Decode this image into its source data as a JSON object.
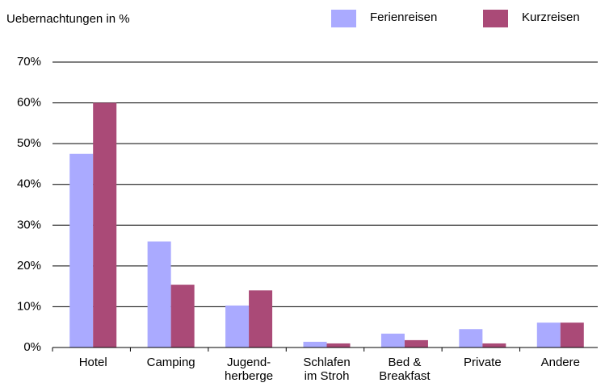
{
  "chart_data": {
    "type": "bar",
    "title": "Uebernachtungen in %",
    "categories": [
      "Hotel",
      "Camping",
      "Jugend-\nherberge",
      "Schlafen\nim Stroh",
      "Bed &\nBreakfast",
      "Private",
      "Andere"
    ],
    "series": [
      {
        "name": "Ferienreisen",
        "color": "#aaaaff",
        "values": [
          47.5,
          26,
          10.3,
          1.4,
          3.4,
          4.5,
          6.1
        ]
      },
      {
        "name": "Kurzreisen",
        "color": "#aa4a77",
        "values": [
          60,
          15.4,
          14,
          1,
          1.8,
          1,
          6.1
        ]
      }
    ],
    "ylim": [
      0,
      70
    ],
    "yticks": [
      {
        "value": 0,
        "label": "0%"
      },
      {
        "value": 10,
        "label": "10%"
      },
      {
        "value": 20,
        "label": "20%"
      },
      {
        "value": 30,
        "label": "30%"
      },
      {
        "value": 40,
        "label": "40%"
      },
      {
        "value": 50,
        "label": "50%"
      },
      {
        "value": 60,
        "label": "60%"
      },
      {
        "value": 70,
        "label": "70%"
      }
    ],
    "grid": true,
    "legend": "top-right"
  }
}
